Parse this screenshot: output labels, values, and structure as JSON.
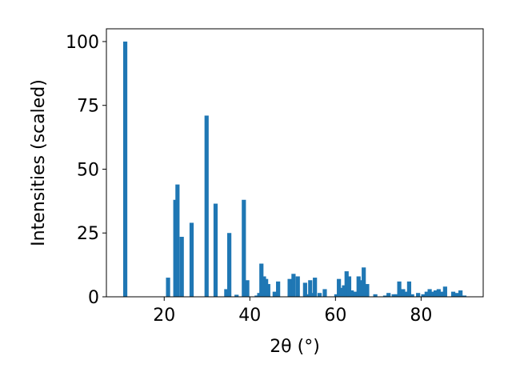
{
  "chart_data": {
    "type": "bar",
    "xlabel": "2θ (°)",
    "ylabel": "Intensities (scaled)",
    "xlim": [
      6.5,
      94.5
    ],
    "ylim": [
      0,
      105
    ],
    "x_ticks": [
      20,
      40,
      60,
      80
    ],
    "y_ticks": [
      0,
      25,
      50,
      75,
      100
    ],
    "grid": false,
    "bar_color": "#1f77b4",
    "x": [
      10.9,
      20.9,
      22.6,
      23.1,
      24.1,
      26.4,
      29.9,
      32.0,
      34.5,
      35.2,
      36.9,
      38.6,
      39.4,
      41.6,
      42.2,
      42.7,
      43.3,
      43.8,
      44.3,
      45.8,
      46.6,
      49.3,
      49.8,
      50.2,
      51.2,
      52.9,
      53.7,
      54.1,
      54.6,
      55.2,
      56.3,
      57.5,
      60.2,
      60.8,
      61.4,
      62.0,
      62.6,
      63.2,
      63.8,
      64.6,
      65.4,
      66.0,
      66.6,
      67.4,
      69.3,
      71.6,
      72.4,
      73.6,
      74.3,
      74.9,
      75.8,
      76.5,
      77.2,
      77.9,
      79.3,
      80.5,
      81.3,
      82.0,
      82.7,
      83.4,
      84.1,
      84.8,
      85.6,
      87.5,
      88.3,
      89.2,
      90.1
    ],
    "values": [
      100,
      7.5,
      38,
      44,
      23.5,
      29,
      71,
      36.5,
      3,
      25,
      0.8,
      38,
      6.5,
      0.5,
      1.5,
      13,
      8,
      7,
      5,
      2,
      6,
      7,
      1,
      9,
      8,
      5.5,
      1,
      6.5,
      1.5,
      7.5,
      1.5,
      3,
      1,
      7,
      3.5,
      4.5,
      10,
      8,
      2.5,
      2,
      8,
      6.5,
      11.5,
      5,
      1,
      0.5,
      1.5,
      1,
      1,
      6,
      3,
      2,
      6,
      1,
      1.5,
      1,
      2,
      3,
      2,
      2.5,
      3,
      2,
      4,
      2,
      1.5,
      2.5,
      0.5
    ]
  }
}
